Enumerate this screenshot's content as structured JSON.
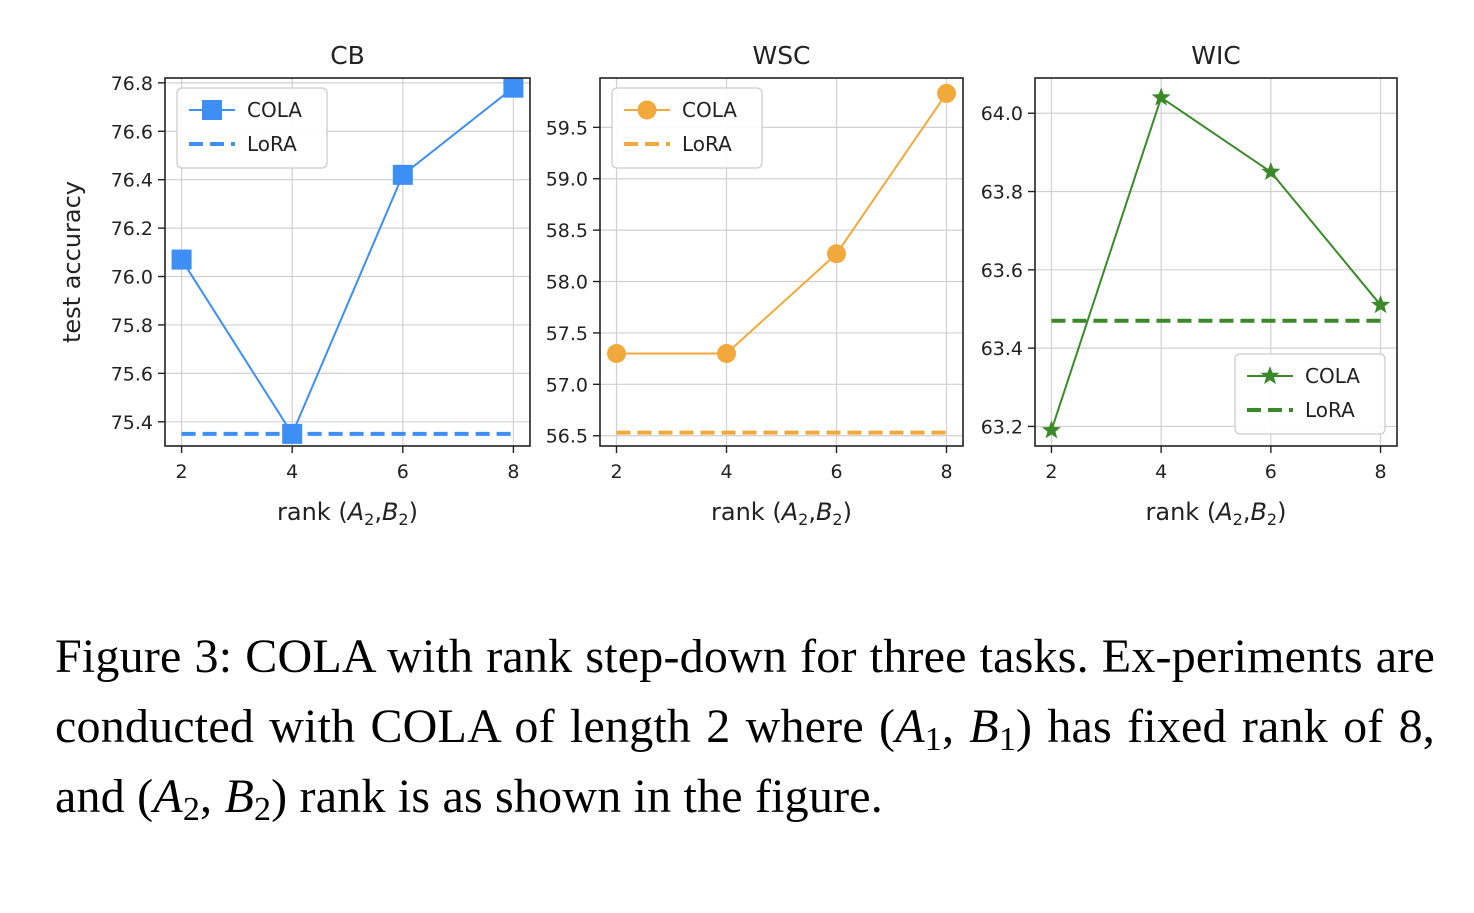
{
  "chart_data": [
    {
      "type": "line",
      "title": "CB",
      "xlabel": "rank (A_2, B_2)",
      "ylabel": "test accuracy",
      "x": [
        2,
        4,
        6,
        8
      ],
      "xlim": [
        1.7,
        8.3
      ],
      "ylim": [
        75.3,
        76.82
      ],
      "yticks": [
        75.4,
        75.6,
        75.8,
        76.0,
        76.2,
        76.4,
        76.6,
        76.8
      ],
      "ytick_labels": [
        "75.4",
        "75.6",
        "75.8",
        "76.0",
        "76.2",
        "76.4",
        "76.6",
        "76.8"
      ],
      "grid": true,
      "legend": "upper-left",
      "series": [
        {
          "name": "COLA",
          "values": [
            76.07,
            75.35,
            76.42,
            76.78
          ],
          "color": "#3d8ef5",
          "marker": "square",
          "style": "solid"
        },
        {
          "name": "LoRA",
          "values": [
            75.35,
            75.35,
            75.35,
            75.35
          ],
          "color": "#3d8ef5",
          "style": "dashed"
        }
      ]
    },
    {
      "type": "line",
      "title": "WSC",
      "xlabel": "rank (A_2, B_2)",
      "ylabel": "",
      "x": [
        2,
        4,
        6,
        8
      ],
      "xlim": [
        1.7,
        8.3
      ],
      "ylim": [
        56.4,
        59.98
      ],
      "yticks": [
        56.5,
        57.0,
        57.5,
        58.0,
        58.5,
        59.0,
        59.5
      ],
      "ytick_labels": [
        "56.5",
        "57.0",
        "57.5",
        "58.0",
        "58.5",
        "59.0",
        "59.5"
      ],
      "grid": true,
      "legend": "upper-left",
      "series": [
        {
          "name": "COLA",
          "values": [
            57.3,
            57.3,
            58.27,
            59.83
          ],
          "color": "#f2a93b",
          "marker": "circle",
          "style": "solid"
        },
        {
          "name": "LoRA",
          "values": [
            56.53,
            56.53,
            56.53,
            56.53
          ],
          "color": "#f2a93b",
          "style": "dashed"
        }
      ]
    },
    {
      "type": "line",
      "title": "WIC",
      "xlabel": "rank (A_2, B_2)",
      "ylabel": "",
      "x": [
        2,
        4,
        6,
        8
      ],
      "xlim": [
        1.7,
        8.3
      ],
      "ylim": [
        63.15,
        64.09
      ],
      "yticks": [
        63.2,
        63.4,
        63.6,
        63.8,
        64.0
      ],
      "ytick_labels": [
        "63.2",
        "63.4",
        "63.6",
        "63.8",
        "64.0"
      ],
      "grid": true,
      "legend": "lower-right",
      "series": [
        {
          "name": "COLA",
          "values": [
            63.19,
            64.04,
            63.85,
            63.51
          ],
          "color": "#3b8a2a",
          "marker": "star",
          "style": "solid"
        },
        {
          "name": "LoRA",
          "values": [
            63.47,
            63.47,
            63.47,
            63.47
          ],
          "color": "#3b8a2a",
          "style": "dashed"
        }
      ]
    }
  ],
  "caption": {
    "parts": [
      {
        "t": "Figure 3: COLA with rank step-down for three tasks. Ex-periments are conducted with COLA of length 2 where ("
      },
      {
        "t": "A",
        "i": true
      },
      {
        "t": "1",
        "sub": true
      },
      {
        "t": ", "
      },
      {
        "t": "B",
        "i": true
      },
      {
        "t": "1",
        "sub": true
      },
      {
        "t": ") has fixed rank of 8, and ("
      },
      {
        "t": "A",
        "i": true
      },
      {
        "t": "2",
        "sub": true
      },
      {
        "t": ", "
      },
      {
        "t": "B",
        "i": true
      },
      {
        "t": "2",
        "sub": true
      },
      {
        "t": ") rank is as shown in the figure."
      }
    ]
  }
}
